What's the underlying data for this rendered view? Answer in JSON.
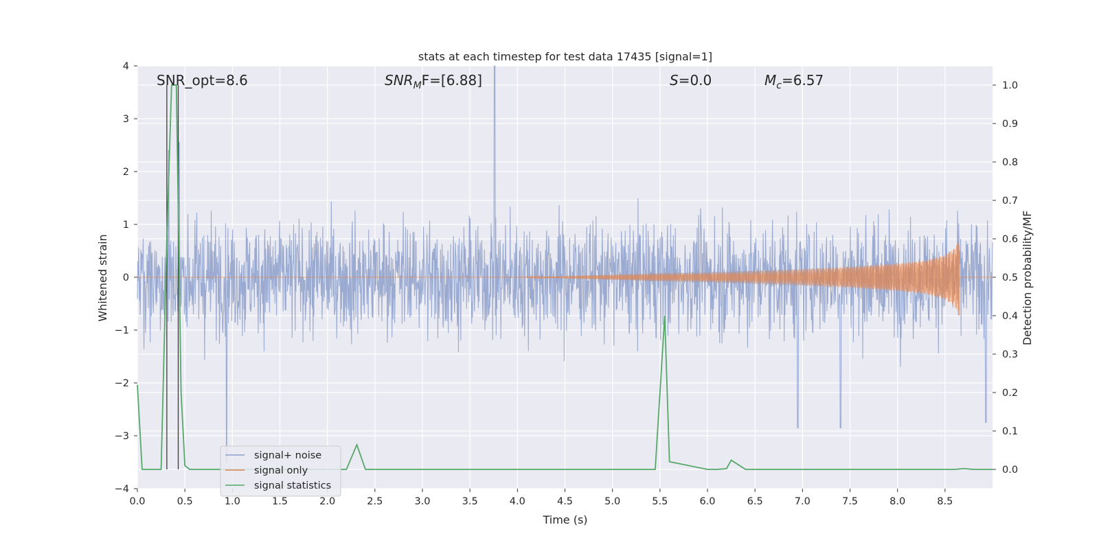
{
  "chart_data": {
    "type": "line",
    "title": "stats at each timestep for test data 17435 [signal=1]",
    "xlabel": "Time (s)",
    "ylabel_left": "Whitened strain",
    "ylabel_right": "Detection probability/MF",
    "xlim": [
      0.0,
      9.0
    ],
    "ylim_left": [
      -4.0,
      4.0
    ],
    "ylim_right": [
      -0.05,
      1.05
    ],
    "x_ticks": [
      "0.0",
      "0.5",
      "1.0",
      "1.5",
      "2.0",
      "2.5",
      "3.0",
      "3.5",
      "4.0",
      "4.5",
      "5.0",
      "5.5",
      "6.0",
      "6.5",
      "7.0",
      "7.5",
      "8.0",
      "8.5"
    ],
    "y_ticks_left": [
      "4",
      "3",
      "2",
      "1",
      "0",
      "−1",
      "−2",
      "−3",
      "−4"
    ],
    "y_ticks_right": [
      "1.0",
      "0.9",
      "0.8",
      "0.7",
      "0.6",
      "0.5",
      "0.4",
      "0.3",
      "0.2",
      "0.1",
      "0.0"
    ],
    "grid": true,
    "legend_position": "lower-left",
    "annotations": {
      "snr_opt": "SNR_opt=8.6",
      "snr_mf_sym": "SNR",
      "snr_mf_sub": "M",
      "snr_mf_rest": "F=[6.88]",
      "s_sym": "S",
      "s_rest": "=0.0",
      "mc_sym": "M",
      "mc_sub": "c",
      "mc_rest": "=6.57"
    },
    "vertical_lines_x": [
      0.31,
      0.43
    ],
    "series": [
      {
        "name": "signal+ noise",
        "color": "#8c9fca",
        "description_values": "whitened strain noise, roughly within ±1.5 with spikes",
        "notable_peaks": [
          [
            0.44,
            2.55
          ],
          [
            3.76,
            4.0
          ],
          [
            0.33,
            2.4
          ],
          [
            0.94,
            -3.5
          ],
          [
            6.95,
            -2.85
          ],
          [
            7.4,
            -2.85
          ],
          [
            8.93,
            -2.75
          ]
        ]
      },
      {
        "name": "signal only",
        "color": "#dd8452",
        "envelope_x": [
          0.0,
          4.0,
          4.5,
          5.0,
          5.5,
          6.0,
          6.5,
          7.0,
          7.5,
          8.0,
          8.3,
          8.5,
          8.6,
          8.65,
          8.66,
          9.0
        ],
        "envelope_amp": [
          0.0,
          0.0,
          0.02,
          0.05,
          0.08,
          0.1,
          0.13,
          0.16,
          0.2,
          0.26,
          0.32,
          0.42,
          0.55,
          0.72,
          0.0,
          0.0
        ]
      },
      {
        "name": "signal statistics",
        "color": "#55a868",
        "x": [
          0.0,
          0.05,
          0.1,
          0.15,
          0.2,
          0.25,
          0.31,
          0.36,
          0.41,
          0.46,
          0.5,
          0.55,
          0.6,
          0.7,
          1.0,
          1.5,
          2.0,
          2.1,
          2.2,
          2.31,
          2.4,
          2.5,
          3.0,
          3.5,
          4.0,
          4.5,
          5.0,
          5.35,
          5.45,
          5.55,
          5.6,
          6.0,
          6.1,
          6.2,
          6.25,
          6.35,
          6.4,
          7.0,
          7.5,
          8.0,
          8.4,
          8.6,
          8.7,
          8.8,
          9.0
        ],
        "values": [
          0.22,
          0.0,
          0.0,
          0.0,
          0.0,
          0.0,
          0.6,
          1.0,
          1.0,
          0.2,
          0.01,
          0.0,
          0.0,
          0.0,
          0.0,
          0.0,
          0.0,
          0.0,
          0.0,
          0.064,
          0.0,
          0.0,
          0.0,
          0.0,
          0.0,
          0.0,
          0.0,
          0.0,
          0.0,
          0.4,
          0.02,
          0.0,
          0.0,
          0.002,
          0.024,
          0.008,
          0.0,
          0.0,
          0.0,
          0.0,
          0.0,
          0.0,
          0.002,
          0.0,
          0.0
        ]
      }
    ]
  }
}
